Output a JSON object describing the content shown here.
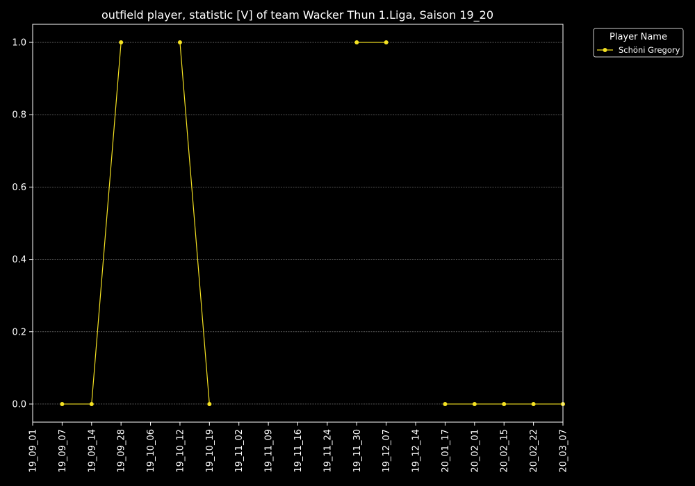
{
  "chart_data": {
    "type": "line",
    "title": "outfield player, statistic [V] of team Wacker Thun 1.Liga, Saison 19_20",
    "xlabel": "",
    "ylabel": "",
    "categories": [
      "19_09_01",
      "19_09_07",
      "19_09_14",
      "19_09_28",
      "19_10_06",
      "19_10_12",
      "19_10_19",
      "19_11_02",
      "19_11_09",
      "19_11_16",
      "19_11_24",
      "19_11_30",
      "19_12_07",
      "19_12_14",
      "20_01_17",
      "20_02_01",
      "20_02_15",
      "20_02_22",
      "20_03_07"
    ],
    "y_ticks": [
      "0.0",
      "0.2",
      "0.4",
      "0.6",
      "0.8",
      "1.0"
    ],
    "ylim": [
      -0.05,
      1.05
    ],
    "grid": "horizontal dashed",
    "legend": {
      "title": "Player Name",
      "placement": "top-right outside plot"
    },
    "series": [
      {
        "name": "Schöni Gregory",
        "color": "#f5e222",
        "values": [
          null,
          0,
          0,
          1,
          null,
          1,
          0,
          null,
          null,
          null,
          null,
          1,
          1,
          null,
          0,
          0,
          0,
          0,
          0
        ]
      }
    ]
  }
}
